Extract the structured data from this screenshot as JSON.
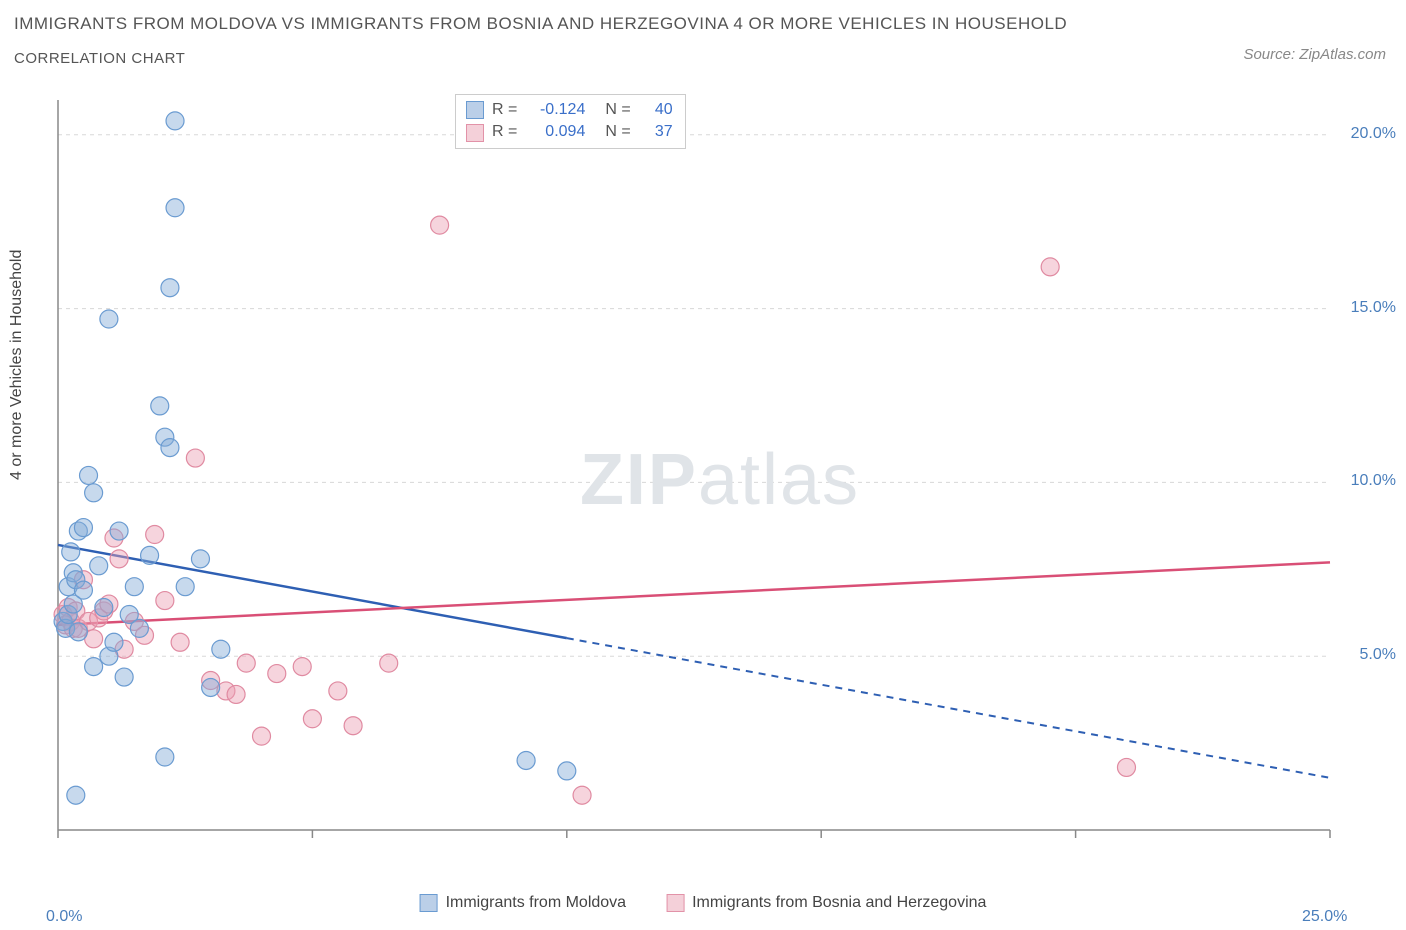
{
  "title": "IMMIGRANTS FROM MOLDOVA VS IMMIGRANTS FROM BOSNIA AND HERZEGOVINA 4 OR MORE VEHICLES IN HOUSEHOLD",
  "subtitle": "CORRELATION CHART",
  "source": "Source: ZipAtlas.com",
  "ylabel": "4 or more Vehicles in Household",
  "watermark_zip": "ZIP",
  "watermark_atlas": "atlas",
  "chart": {
    "type": "scatter",
    "xlim": [
      0,
      25
    ],
    "ylim": [
      0,
      21
    ],
    "x_ticks": [
      0,
      5,
      10,
      15,
      20,
      25
    ],
    "x_tick_labels": [
      "0.0%",
      "",
      "",
      "",
      "",
      "25.0%"
    ],
    "y_ticks": [
      5,
      10,
      15,
      20
    ],
    "y_tick_labels": [
      "5.0%",
      "10.0%",
      "15.0%",
      "20.0%"
    ],
    "grid_color": "#d8d8d8",
    "axis_color": "#888888",
    "background_color": "#ffffff",
    "marker_radius": 9,
    "marker_stroke_width": 1.2,
    "line_width": 2.5,
    "series": [
      {
        "name": "Immigrants from Moldova",
        "color_fill": "rgba(130,170,215,0.45)",
        "color_stroke": "#6a9bd1",
        "line_color": "#2e5fb3",
        "R": -0.124,
        "N": 40,
        "trend": {
          "x1": 0,
          "y1": 8.2,
          "x2": 25,
          "y2": 1.5,
          "solid_until_x": 10
        },
        "points": [
          [
            0.1,
            6.0
          ],
          [
            0.15,
            5.8
          ],
          [
            0.2,
            7.0
          ],
          [
            0.2,
            6.2
          ],
          [
            0.25,
            8.0
          ],
          [
            0.3,
            7.4
          ],
          [
            0.3,
            6.5
          ],
          [
            0.35,
            7.2
          ],
          [
            0.4,
            5.7
          ],
          [
            0.4,
            8.6
          ],
          [
            0.5,
            8.7
          ],
          [
            0.5,
            6.9
          ],
          [
            0.6,
            10.2
          ],
          [
            0.7,
            9.7
          ],
          [
            0.7,
            4.7
          ],
          [
            0.8,
            7.6
          ],
          [
            0.9,
            6.4
          ],
          [
            1.0,
            5.0
          ],
          [
            1.0,
            14.7
          ],
          [
            1.1,
            5.4
          ],
          [
            1.2,
            8.6
          ],
          [
            1.3,
            4.4
          ],
          [
            1.4,
            6.2
          ],
          [
            1.5,
            7.0
          ],
          [
            1.6,
            5.8
          ],
          [
            1.8,
            7.9
          ],
          [
            2.0,
            12.2
          ],
          [
            2.1,
            2.1
          ],
          [
            2.1,
            11.3
          ],
          [
            2.2,
            11.0
          ],
          [
            2.2,
            15.6
          ],
          [
            2.3,
            17.9
          ],
          [
            2.3,
            20.4
          ],
          [
            2.5,
            7.0
          ],
          [
            2.8,
            7.8
          ],
          [
            3.0,
            4.1
          ],
          [
            3.2,
            5.2
          ],
          [
            9.2,
            2.0
          ],
          [
            10.0,
            1.7
          ],
          [
            0.35,
            1.0
          ]
        ]
      },
      {
        "name": "Immigrants from Bosnia and Herzegovina",
        "color_fill": "rgba(235,160,180,0.45)",
        "color_stroke": "#e08aa1",
        "line_color": "#d94f76",
        "R": 0.094,
        "N": 37,
        "trend": {
          "x1": 0,
          "y1": 5.9,
          "x2": 25,
          "y2": 7.7,
          "solid_until_x": 25
        },
        "points": [
          [
            0.1,
            6.2
          ],
          [
            0.15,
            5.9
          ],
          [
            0.2,
            6.4
          ],
          [
            0.25,
            6.0
          ],
          [
            0.3,
            5.8
          ],
          [
            0.35,
            6.3
          ],
          [
            0.4,
            5.8
          ],
          [
            0.5,
            7.2
          ],
          [
            0.6,
            6.0
          ],
          [
            0.7,
            5.5
          ],
          [
            0.8,
            6.1
          ],
          [
            0.9,
            6.3
          ],
          [
            1.0,
            6.5
          ],
          [
            1.1,
            8.4
          ],
          [
            1.2,
            7.8
          ],
          [
            1.3,
            5.2
          ],
          [
            1.5,
            6.0
          ],
          [
            1.7,
            5.6
          ],
          [
            1.9,
            8.5
          ],
          [
            2.1,
            6.6
          ],
          [
            2.4,
            5.4
          ],
          [
            2.7,
            10.7
          ],
          [
            3.0,
            4.3
          ],
          [
            3.3,
            4.0
          ],
          [
            3.5,
            3.9
          ],
          [
            3.7,
            4.8
          ],
          [
            4.0,
            2.7
          ],
          [
            4.3,
            4.5
          ],
          [
            4.8,
            4.7
          ],
          [
            5.0,
            3.2
          ],
          [
            5.5,
            4.0
          ],
          [
            5.8,
            3.0
          ],
          [
            6.5,
            4.8
          ],
          [
            7.5,
            17.4
          ],
          [
            10.3,
            1.0
          ],
          [
            19.5,
            16.2
          ],
          [
            21.0,
            1.8
          ]
        ]
      }
    ]
  },
  "legend_bottom": [
    {
      "label": "Immigrants from Moldova",
      "color": "blue"
    },
    {
      "label": "Immigrants from Bosnia and Herzegovina",
      "color": "pink"
    }
  ],
  "stats_labels": {
    "R": "R =",
    "N": "N ="
  }
}
